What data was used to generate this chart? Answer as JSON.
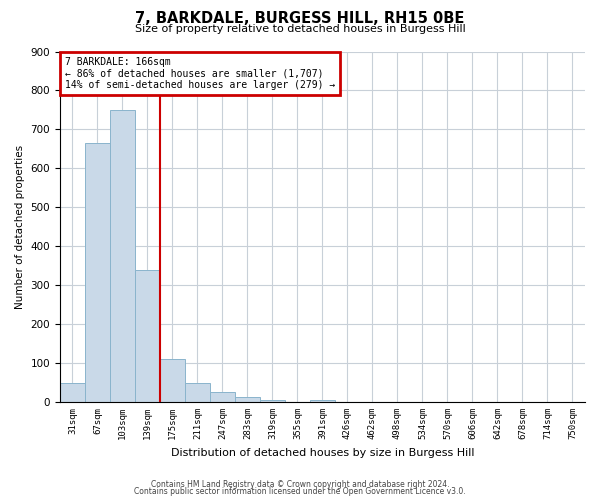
{
  "title": "7, BARKDALE, BURGESS HILL, RH15 0BE",
  "subtitle": "Size of property relative to detached houses in Burgess Hill",
  "xlabel": "Distribution of detached houses by size in Burgess Hill",
  "ylabel": "Number of detached properties",
  "bar_color": "#c9d9e8",
  "bar_edgecolor": "#8ab4cc",
  "bin_labels": [
    "31sqm",
    "67sqm",
    "103sqm",
    "139sqm",
    "175sqm",
    "211sqm",
    "247sqm",
    "283sqm",
    "319sqm",
    "355sqm",
    "391sqm",
    "426sqm",
    "462sqm",
    "498sqm",
    "534sqm",
    "570sqm",
    "606sqm",
    "642sqm",
    "678sqm",
    "714sqm",
    "750sqm"
  ],
  "bar_heights": [
    50,
    665,
    750,
    338,
    110,
    50,
    25,
    12,
    5,
    0,
    5,
    0,
    0,
    0,
    0,
    0,
    0,
    0,
    0,
    0,
    0
  ],
  "vline_x": 4.0,
  "vline_color": "#cc0000",
  "ylim": [
    0,
    900
  ],
  "yticks": [
    0,
    100,
    200,
    300,
    400,
    500,
    600,
    700,
    800,
    900
  ],
  "annotation_title": "7 BARKDALE: 166sqm",
  "annotation_line1": "← 86% of detached houses are smaller (1,707)",
  "annotation_line2": "14% of semi-detached houses are larger (279) →",
  "annotation_box_color": "#cc0000",
  "footer_line1": "Contains HM Land Registry data © Crown copyright and database right 2024.",
  "footer_line2": "Contains public sector information licensed under the Open Government Licence v3.0.",
  "background_color": "#ffffff",
  "grid_color": "#c8d0d8"
}
